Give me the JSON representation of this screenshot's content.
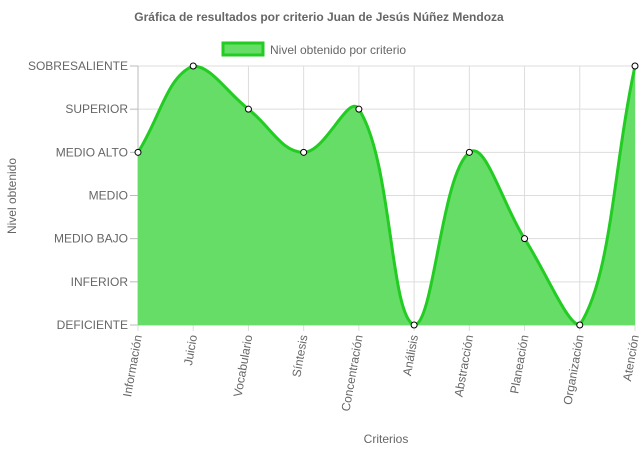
{
  "chart_data": {
    "type": "area",
    "title": "Gráfica de resultados por criterio Juan de Jesús Núñez Mendoza",
    "xlabel": "Criterios",
    "ylabel": "Nivel obtenido",
    "categories": [
      "Información",
      "Juicio",
      "Vocabulario",
      "Síntesis",
      "Concentración",
      "Análisis",
      "Abstracción",
      "Planeación",
      "Organización",
      "Atención"
    ],
    "y_levels": [
      "DEFICIENTE",
      "INFERIOR",
      "MEDIO BAJO",
      "MEDIO",
      "MEDIO ALTO",
      "SUPERIOR",
      "SOBRESALIENTE"
    ],
    "series": [
      {
        "name": "Nivel obtenido por criterio",
        "values": [
          4,
          6,
          5,
          4,
          5,
          0,
          4,
          2,
          0,
          6
        ]
      }
    ],
    "ylim": [
      0,
      6
    ],
    "grid": true,
    "legend_position": "top",
    "colors": {
      "fill": "#66dd66",
      "stroke": "#22cc22",
      "grid": "#dddddd",
      "axis": "#bbbbbb",
      "text": "#666666",
      "point_fill": "#ffffff",
      "point_stroke": "#000000"
    }
  }
}
